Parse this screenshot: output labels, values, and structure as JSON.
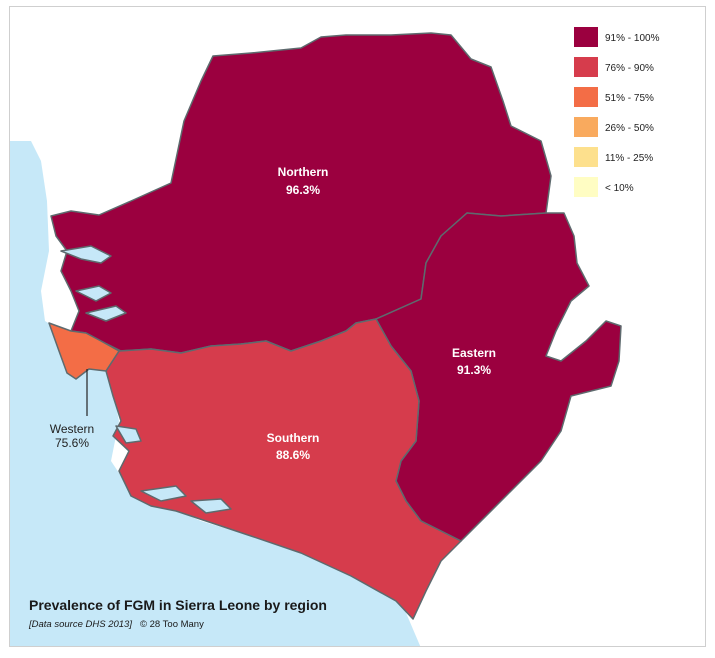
{
  "title": "Prevalence of FGM in Sierra Leone by region",
  "source_note": "[Data source DHS 2013]",
  "credit": "© 28 Too Many",
  "legend": [
    {
      "label": "91% - 100%",
      "color": "#9b003f"
    },
    {
      "label": "76% - 90%",
      "color": "#d63c4c"
    },
    {
      "label": "51% - 75%",
      "color": "#f36d46"
    },
    {
      "label": "26% - 50%",
      "color": "#f9aa5e"
    },
    {
      "label": "11% - 25%",
      "color": "#fde08d"
    },
    {
      "label": "< 10%",
      "color": "#fffdc3"
    }
  ],
  "regions": {
    "northern": {
      "name": "Northern",
      "value": "96.3%",
      "color": "#9b003f"
    },
    "eastern": {
      "name": "Eastern",
      "value": "91.3%",
      "color": "#9b003f"
    },
    "southern": {
      "name": "Southern",
      "value": "88.6%",
      "color": "#d63c4c"
    },
    "western": {
      "name": "Western",
      "value": "75.6%",
      "color": "#f36d46"
    }
  },
  "colors": {
    "sea": "#c6e8f8",
    "border": "#5e6a6e",
    "background": "#ffffff"
  }
}
